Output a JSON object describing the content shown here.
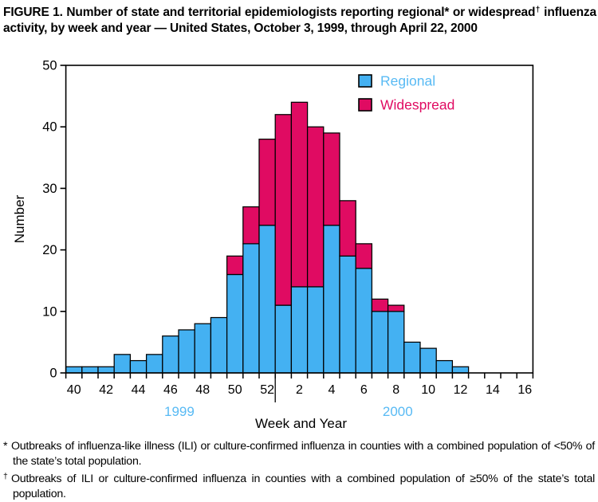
{
  "figure_title": {
    "part1": "FIGURE 1. Number of state and territorial epidemiologists reporting regional* or widespread",
    "sup1": "†",
    "part2": " influenza activity, by week and year — United States, October 3, 1999, through April 22, 2000"
  },
  "chart_data": {
    "type": "bar",
    "stacked": true,
    "xlabel": "Week and Year",
    "ylabel": "Number",
    "ylim": [
      0,
      50
    ],
    "yticks": [
      0,
      10,
      20,
      30,
      40,
      50
    ],
    "categories": [
      "40",
      "41",
      "42",
      "43",
      "44",
      "45",
      "46",
      "47",
      "48",
      "49",
      "50",
      "51",
      "52",
      "1",
      "2",
      "3",
      "4",
      "5",
      "6",
      "7",
      "8",
      "9",
      "10",
      "11",
      "12",
      "13",
      "14",
      "15",
      "16"
    ],
    "labeled_categories": [
      "40",
      "42",
      "44",
      "46",
      "48",
      "50",
      "52",
      "2",
      "4",
      "6",
      "8",
      "10",
      "12",
      "14",
      "16"
    ],
    "series": [
      {
        "name": "Regional",
        "color": "#44B1F2",
        "label_color": "#58BAF4",
        "values": [
          1,
          1,
          1,
          3,
          2,
          3,
          6,
          7,
          8,
          9,
          16,
          21,
          24,
          11,
          14,
          14,
          24,
          19,
          17,
          10,
          10,
          5,
          4,
          2,
          1,
          0,
          0,
          0,
          0
        ]
      },
      {
        "name": "Widespread",
        "color": "#E00B62",
        "label_color": "#E00B62",
        "values": [
          0,
          0,
          0,
          0,
          0,
          0,
          0,
          0,
          0,
          0,
          3,
          6,
          14,
          31,
          30,
          26,
          15,
          9,
          4,
          2,
          1,
          0,
          0,
          0,
          0,
          0,
          0,
          0,
          0
        ]
      }
    ],
    "year_divider_after": "52",
    "year_labels": [
      "1999",
      "2000"
    ],
    "year_label_color": "#58BAF4",
    "axis_color": "#000000",
    "legend_position": "top-right",
    "grid": false
  },
  "footnotes": [
    {
      "marker": "*",
      "text": "Outbreaks of influenza-like illness (ILI) or culture-confirmed influenza in counties with a combined population of <50% of the state’s total population."
    },
    {
      "marker": "†",
      "text": "Outbreaks of ILI or culture-confirmed influenza in counties with a combined population of ≥50% of the state’s total population."
    }
  ]
}
